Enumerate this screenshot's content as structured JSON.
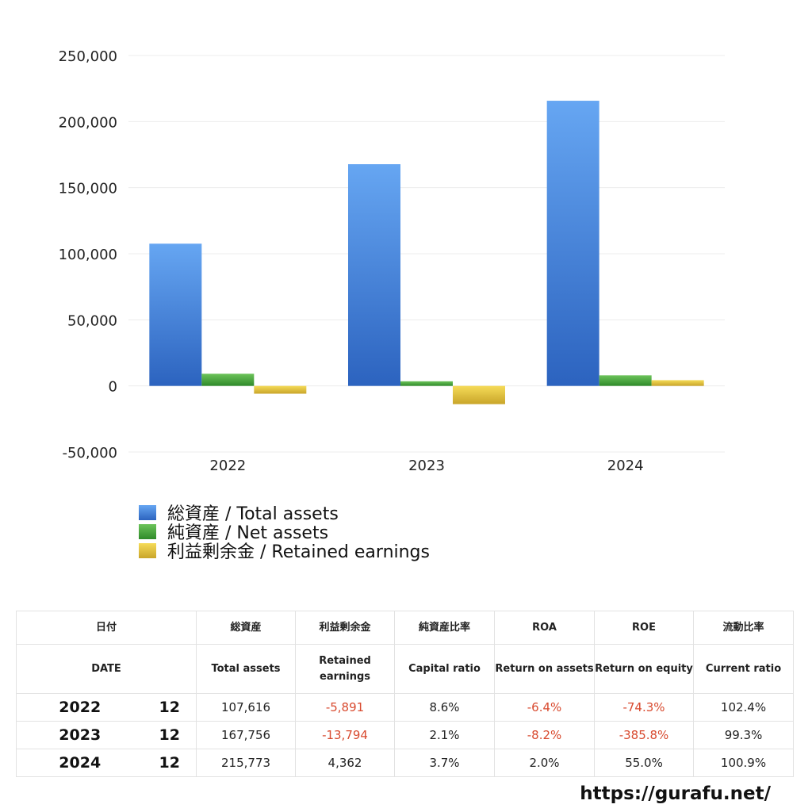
{
  "chart_data": {
    "type": "bar",
    "categories": [
      "2022",
      "2023",
      "2024"
    ],
    "series": [
      {
        "name": "総資産 / Total assets",
        "values": [
          107616,
          167756,
          215773
        ],
        "color": "#4a86e0"
      },
      {
        "name": "純資産 / Net assets",
        "values": [
          9200,
          3500,
          8000
        ],
        "color": "#4aa33d"
      },
      {
        "name": "利益剰余金 / Retained earnings",
        "values": [
          -5891,
          -13794,
          4362
        ],
        "color": "#e5c43a"
      }
    ],
    "ylim": [
      -50000,
      250000
    ],
    "yticks": [
      "250,000",
      "200,000",
      "150,000",
      "100,000",
      "50,000",
      "0",
      "-50,000"
    ],
    "ytick_values": [
      250000,
      200000,
      150000,
      100000,
      50000,
      0,
      -50000
    ],
    "grid": true,
    "legend_position": "bottom-left"
  },
  "table": {
    "headers_ja": [
      "日付",
      "",
      "総資産",
      "利益剰余金",
      "純資産比率",
      "ROA",
      "ROE",
      "流動比率"
    ],
    "headers_en": [
      "DATE",
      "",
      "Total assets",
      "Retained earnings",
      "Capital ratio",
      "Return on assets",
      "Return on equity",
      "Current ratio"
    ],
    "rows": [
      {
        "year": "2022",
        "month": "12",
        "total_assets": "107,616",
        "retained_earnings": "-5,891",
        "capital_ratio": "8.6%",
        "roa": "-6.4%",
        "roe": "-74.3%",
        "current_ratio": "102.4%"
      },
      {
        "year": "2023",
        "month": "12",
        "total_assets": "167,756",
        "retained_earnings": "-13,794",
        "capital_ratio": "2.1%",
        "roa": "-8.2%",
        "roe": "-385.8%",
        "current_ratio": "99.3%"
      },
      {
        "year": "2024",
        "month": "12",
        "total_assets": "215,773",
        "retained_earnings": "4,362",
        "capital_ratio": "3.7%",
        "roa": "2.0%",
        "roe": "55.0%",
        "current_ratio": "100.9%"
      }
    ]
  },
  "footer": {
    "url": "https://gurafu.net/"
  }
}
